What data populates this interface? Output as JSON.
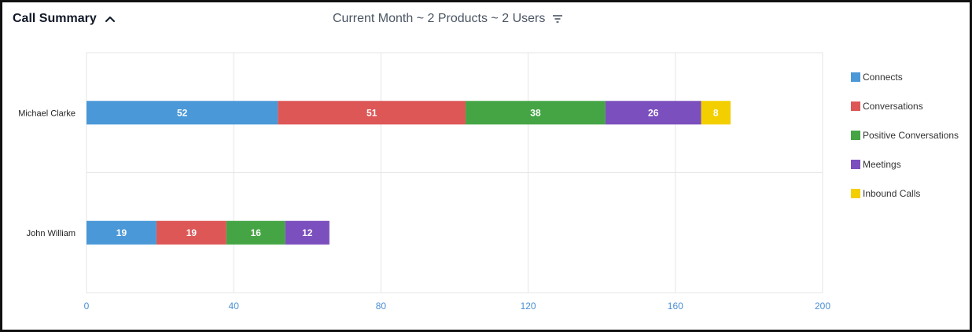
{
  "header": {
    "title": "Call Summary",
    "filter_text": "Current Month ~ 2 Products ~ 2 Users",
    "collapse_icon": "chevron-up-icon",
    "filter_icon": "filter-icon"
  },
  "chart_data": {
    "type": "bar",
    "orientation": "horizontal",
    "stacked": true,
    "categories": [
      "Michael Clarke",
      "John William"
    ],
    "series": [
      {
        "name": "Connects",
        "color": "#4a98d8",
        "values": [
          52,
          19
        ]
      },
      {
        "name": "Conversations",
        "color": "#dd5757",
        "values": [
          51,
          19
        ]
      },
      {
        "name": "Positive Conversations",
        "color": "#45a545",
        "values": [
          38,
          16
        ]
      },
      {
        "name": "Meetings",
        "color": "#7c4fbe",
        "values": [
          26,
          12
        ]
      },
      {
        "name": "Inbound Calls",
        "color": "#f4cf00",
        "values": [
          8,
          null
        ]
      }
    ],
    "xlim": [
      0,
      200
    ],
    "xticks": [
      0,
      40,
      80,
      120,
      160,
      200
    ],
    "grid": true,
    "legend_position": "right",
    "data_labels": true
  }
}
